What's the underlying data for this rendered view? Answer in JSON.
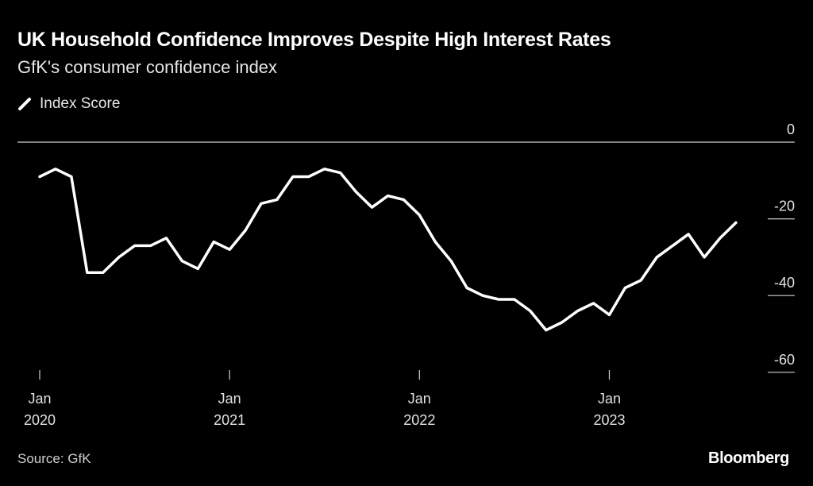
{
  "chart_data": {
    "type": "line",
    "title": "UK Household Confidence Improves Despite High Interest Rates",
    "subtitle": "GfK's consumer confidence index",
    "legend": [
      {
        "name": "Index Score",
        "color": "#ffffff"
      }
    ],
    "legend_placement": "top-left",
    "xlabel": "",
    "ylabel": "",
    "ylim": [
      -60,
      0
    ],
    "yticks": [
      0,
      -20,
      -40,
      -60
    ],
    "ytick_labels": [
      "0",
      "-20",
      "-40",
      "-60"
    ],
    "xtick_labels": [
      {
        "month": "Jan",
        "year": "2020",
        "index": 0
      },
      {
        "month": "Jan",
        "year": "2021",
        "index": 12
      },
      {
        "month": "Jan",
        "year": "2022",
        "index": 24
      },
      {
        "month": "Jan",
        "year": "2023",
        "index": 36
      }
    ],
    "x_start": "2020-01",
    "series": [
      {
        "name": "Index Score",
        "values": [
          -9,
          -7,
          -9,
          -34,
          -34,
          -30,
          -27,
          -27,
          -25,
          -31,
          -33,
          -26,
          -28,
          -23,
          -16,
          -15,
          -9,
          -9,
          -7,
          -8,
          -13,
          -17,
          -14,
          -15,
          -19,
          -26,
          -31,
          -38,
          -40,
          -41,
          -41,
          -44,
          -49,
          -47,
          -44,
          -42,
          -45,
          -38,
          -36,
          -30,
          -27,
          -24,
          -30,
          -25,
          -21
        ]
      }
    ]
  },
  "footer": {
    "source": "Source: GfK",
    "brand": "Bloomberg"
  }
}
